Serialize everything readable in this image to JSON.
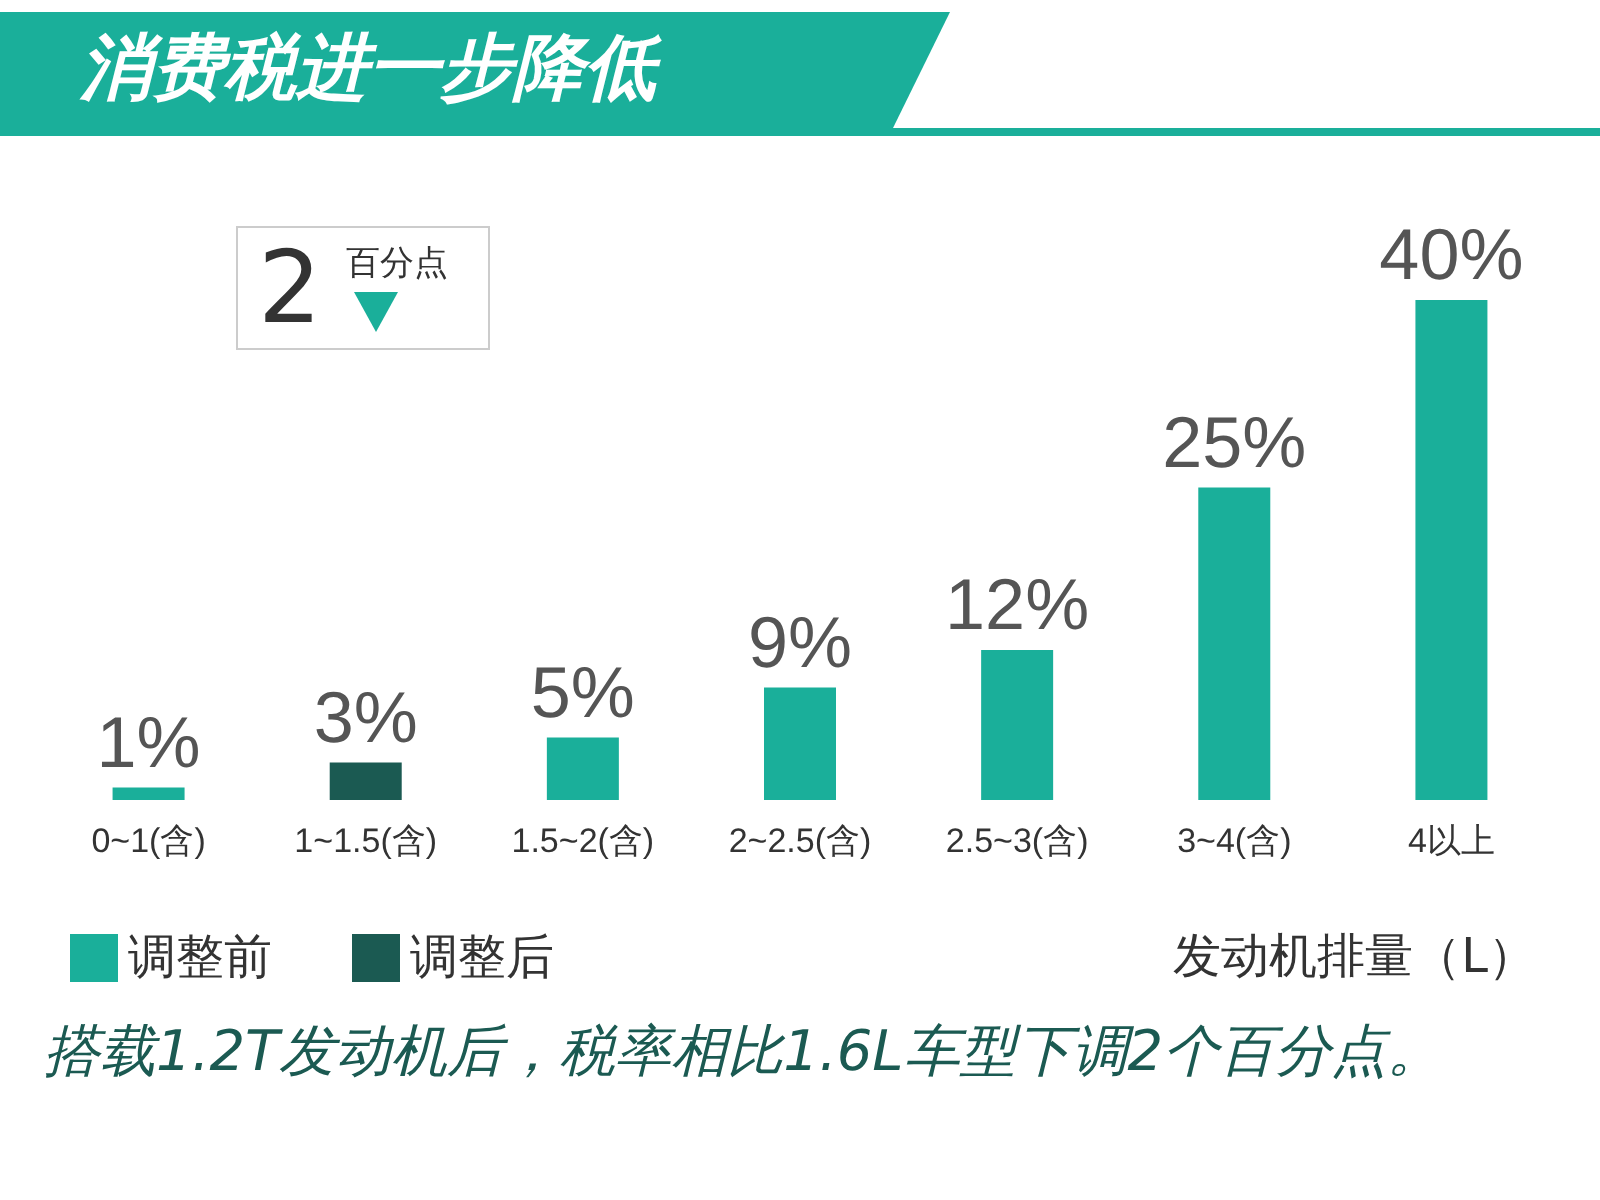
{
  "chart_data": {
    "type": "bar",
    "title": "消费税进一步降低",
    "xlabel": "发动机排量（L）",
    "categories": [
      "0~1(含)",
      "1~1.5(含)",
      "1.5~2(含)",
      "2~2.5(含)",
      "2.5~3(含)",
      "3~4(含)",
      "4以上"
    ],
    "stacked": true,
    "legend": "bottom left",
    "series": [
      {
        "name": "调整前",
        "color": "#1aaf9a",
        "values": [
          1,
          null,
          5,
          9,
          12,
          25,
          40
        ],
        "value_labels": [
          "1%",
          null,
          "5%",
          "9%",
          "12%",
          "25%",
          "40%"
        ]
      },
      {
        "name": "调整后",
        "color": "#1b5a52",
        "values": [
          null,
          3,
          null,
          null,
          null,
          null,
          null
        ],
        "value_labels": [
          null,
          "3%",
          null,
          null,
          null,
          null,
          null
        ]
      }
    ],
    "annotations": [
      "2",
      "百分点",
      "搭载1.2T发动机后，税率相比1.6L车型下调2个百分点。"
    ]
  }
}
